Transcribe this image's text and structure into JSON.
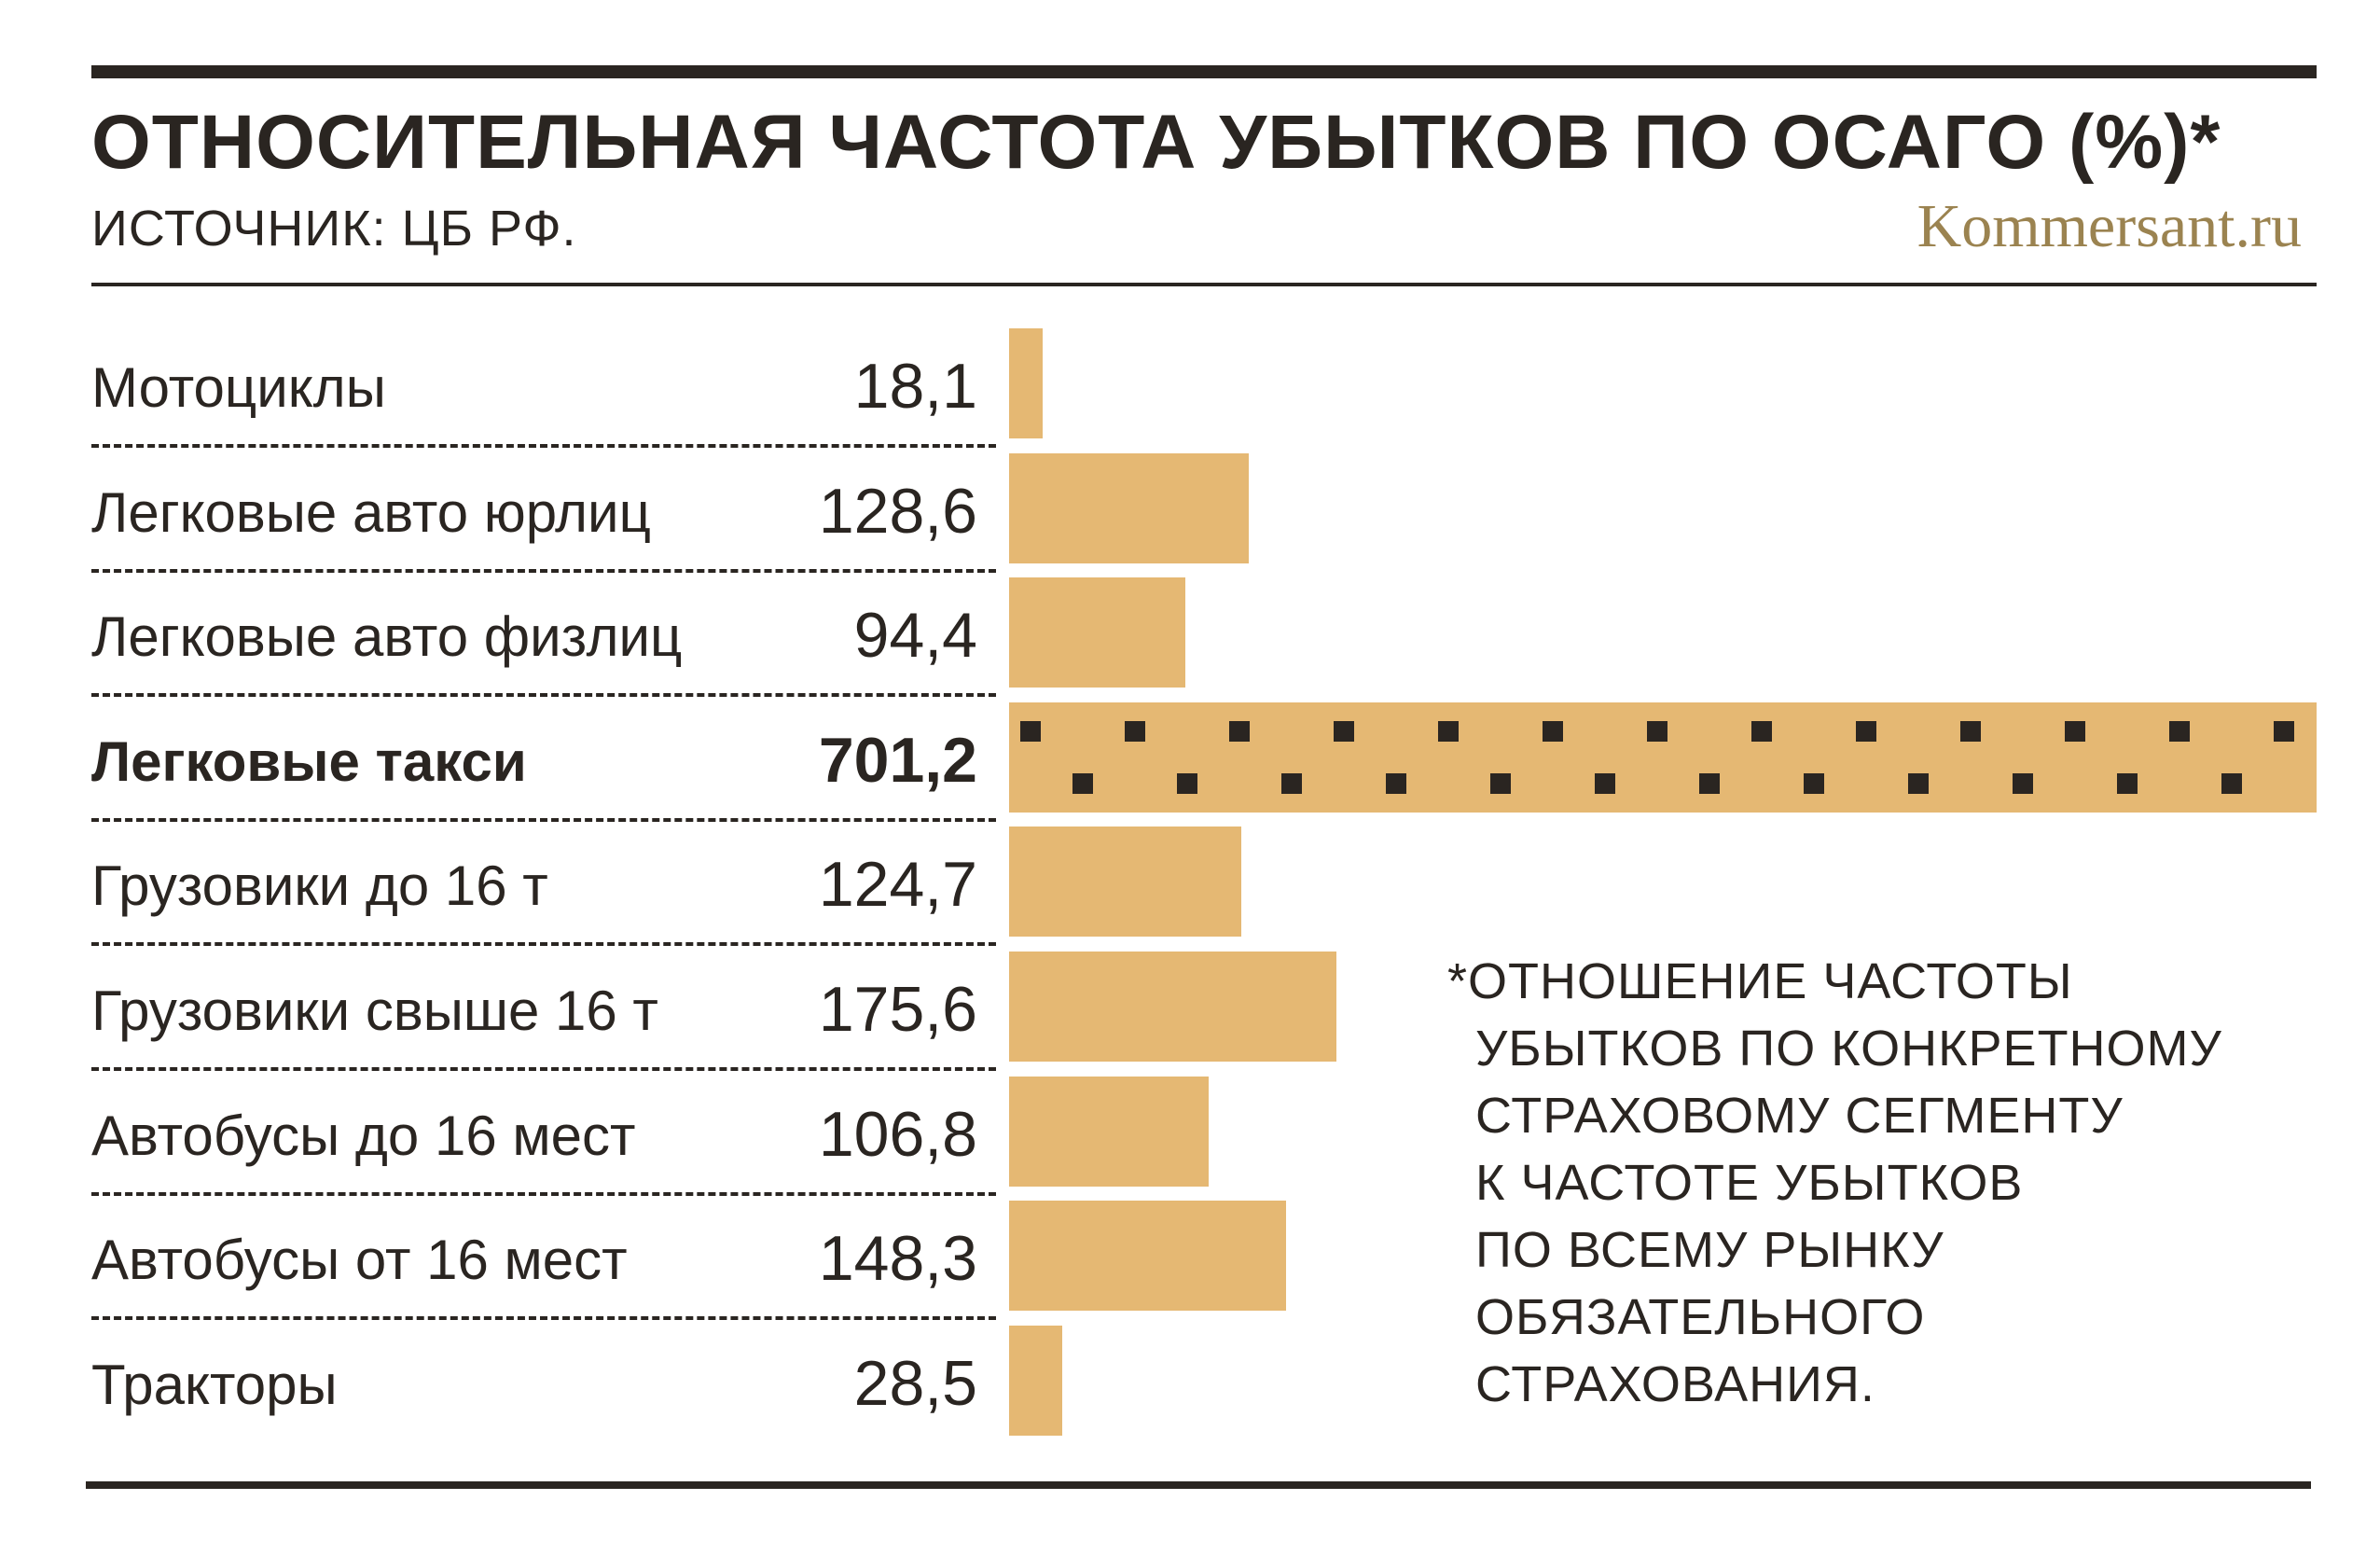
{
  "header": {
    "title": "ОТНОСИТЕЛЬНАЯ ЧАСТОТА УБЫТКОВ ПО ОСАГО (%)*",
    "source": "ИСТОЧНИК: ЦБ РФ.",
    "brand": "Kommersant.ru"
  },
  "chart_data": {
    "type": "bar",
    "orientation": "horizontal",
    "title": "ОТНОСИТЕЛЬНАЯ ЧАСТОТА УБЫТКОВ ПО ОСАГО (%)*",
    "categories": [
      "Мотоциклы",
      "Легковые авто юрлиц",
      "Легковые авто физлиц",
      "Легковые такси",
      "Грузовики до 16 т",
      "Грузовики свыше 16 т",
      "Автобусы до 16 мест",
      "Автобусы от 16 мест",
      "Тракторы"
    ],
    "values": [
      18.1,
      128.6,
      94.4,
      701.2,
      124.7,
      175.6,
      106.8,
      148.3,
      28.5
    ],
    "value_labels": [
      "18,1",
      "128,6",
      "94,4",
      "701,2",
      "124,7",
      "175,6",
      "106,8",
      "148,3",
      "28,5"
    ],
    "highlight_category": "Легковые такси",
    "xlim": [
      0,
      701.2
    ],
    "grid": false,
    "bar_color": "#e5b873",
    "pattern_color": "#2a2521"
  },
  "footnote": {
    "lines": [
      "*ОТНОШЕНИЕ ЧАСТОТЫ",
      "УБЫТКОВ ПО КОНКРЕТНОМУ",
      "СТРАХОВОМУ СЕГМЕНТУ",
      "К ЧАСТОТЕ УБЫТКОВ",
      "ПО ВСЕМУ РЫНКУ",
      "ОБЯЗАТЕЛЬНОГО",
      "СТРАХОВАНИЯ."
    ]
  }
}
